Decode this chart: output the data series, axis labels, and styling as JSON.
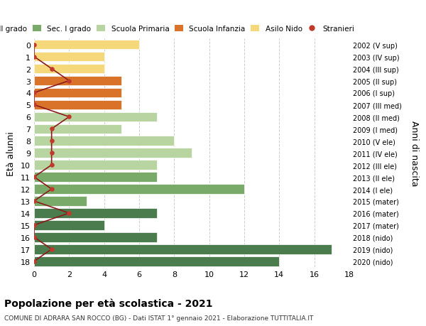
{
  "ages": [
    18,
    17,
    16,
    15,
    14,
    13,
    12,
    11,
    10,
    9,
    8,
    7,
    6,
    5,
    4,
    3,
    2,
    1,
    0
  ],
  "years": [
    "2002 (V sup)",
    "2003 (IV sup)",
    "2004 (III sup)",
    "2005 (II sup)",
    "2006 (I sup)",
    "2007 (III med)",
    "2008 (II med)",
    "2009 (I med)",
    "2010 (V ele)",
    "2011 (IV ele)",
    "2012 (III ele)",
    "2013 (II ele)",
    "2014 (I ele)",
    "2015 (mater)",
    "2016 (mater)",
    "2017 (mater)",
    "2018 (nido)",
    "2019 (nido)",
    "2020 (nido)"
  ],
  "bar_values": [
    14,
    17,
    7,
    4,
    7,
    3,
    12,
    7,
    7,
    9,
    8,
    5,
    7,
    5,
    5,
    5,
    4,
    4,
    6
  ],
  "bar_colors": [
    "#4a7c4e",
    "#4a7c4e",
    "#4a7c4e",
    "#4a7c4e",
    "#4a7c4e",
    "#7aaa6a",
    "#7aaa6a",
    "#7aaa6a",
    "#b8d4a0",
    "#b8d4a0",
    "#b8d4a0",
    "#b8d4a0",
    "#b8d4a0",
    "#d9732a",
    "#d9732a",
    "#d9732a",
    "#f5d87a",
    "#f5d87a",
    "#f5d87a"
  ],
  "stranieri_values": [
    0,
    1,
    0,
    0,
    2,
    0,
    1,
    0,
    1,
    1,
    1,
    1,
    2,
    0,
    0,
    2,
    1,
    0,
    0
  ],
  "stranieri_color": "#c0392b",
  "line_color": "#8b1a1a",
  "title": "Popolazione per età scolastica - 2021",
  "subtitle": "COMUNE DI ADRARA SAN ROCCO (BG) - Dati ISTAT 1° gennaio 2021 - Elaborazione TUTTITALIA.IT",
  "ylabel": "Età alunni",
  "ylabel2": "Anni di nascita",
  "xlim": [
    0,
    18
  ],
  "background_color": "#ffffff",
  "grid_color": "#cccccc",
  "legend_labels": [
    "Sec. II grado",
    "Sec. I grado",
    "Scuola Primaria",
    "Scuola Infanzia",
    "Asilo Nido",
    "Stranieri"
  ],
  "legend_colors": [
    "#4a7c4e",
    "#7aaa6a",
    "#b8d4a0",
    "#d9732a",
    "#f5d87a",
    "#c0392b"
  ],
  "legend_marker": [
    "s",
    "s",
    "s",
    "s",
    "s",
    "o"
  ]
}
